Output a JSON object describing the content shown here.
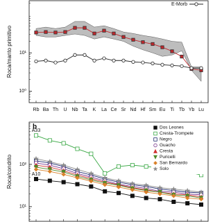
{
  "chart_data": [
    {
      "type": "line",
      "ylabel": "Roca/manto primitivo",
      "log_y": true,
      "legend": "upper right",
      "categories": [
        "Rb",
        "Ba",
        "Th",
        "U",
        "Nb",
        "Ta",
        "K",
        "La",
        "Ce",
        "Sr",
        "Nd",
        "Hf",
        "Sm",
        "Eu",
        "Ti",
        "Tb",
        "Yb",
        "Lu"
      ],
      "ylim": [
        0.5,
        230
      ],
      "yticks": [
        {
          "value": 1,
          "label": "10⁰"
        },
        {
          "value": 10,
          "label": "10¹"
        }
      ],
      "band": {
        "color": "#bdbdbd",
        "upper": [
          43,
          47,
          43,
          47,
          66,
          66,
          47,
          51,
          43,
          35,
          32,
          28.5,
          26,
          23,
          20,
          19,
          4.3,
          4.3
        ],
        "lower": [
          28.5,
          26,
          26,
          28.5,
          31,
          28.5,
          23,
          26,
          23,
          20,
          15,
          12,
          10,
          8.1,
          8.8,
          11.3,
          3.5,
          1.8
        ]
      },
      "series": [
        {
          "color": "#c0282d",
          "marker": "square",
          "values": [
            34,
            35,
            34,
            35,
            45,
            45,
            32,
            38,
            32,
            26,
            22,
            19,
            17,
            14,
            11,
            8,
            3.8,
            3.5
          ]
        },
        {
          "name": "E-Morb",
          "color": "#222222",
          "marker": "circle-open",
          "values": [
            6,
            6.3,
            5.6,
            6.3,
            8.8,
            8.8,
            6.3,
            7.2,
            6.3,
            6.3,
            5.8,
            5.6,
            5.3,
            4.9,
            4.7,
            4.5,
            4,
            4
          ]
        }
      ]
    },
    {
      "type": "line",
      "panel_label": "b",
      "ylabel": "Roca/condrito",
      "log_y": true,
      "legend": "upper right",
      "categories": [
        null,
        null,
        null,
        null,
        null,
        null,
        null,
        null,
        null,
        null,
        null,
        null,
        null
      ],
      "ylim": [
        4.5,
        1000
      ],
      "yticks": [
        {
          "value": 10,
          "label": "10¹"
        },
        {
          "value": 100,
          "label": "10²"
        }
      ],
      "series": [
        {
          "name": "Dos Leones",
          "color": "#111111",
          "marker": "square",
          "annotation": "A10",
          "values": [
            45,
            41,
            38,
            34,
            30,
            23,
            21,
            18,
            16,
            15,
            13,
            12,
            11.2
          ]
        },
        {
          "name": "Cresta-Trompete",
          "color": "#3aa845",
          "marker": "square-open",
          "annotation": "A33",
          "values": [
            482,
            369,
            316,
            233,
            178,
            61,
            89,
            96,
            89,
            83,
            74,
            66,
            56
          ]
        },
        {
          "name": "Negro",
          "color": "#1f2a6e",
          "marker": "square-open",
          "values": [
            121,
            108,
            89,
            68,
            56,
            45,
            38,
            33,
            30,
            26,
            24,
            22,
            21
          ]
        },
        {
          "name": "Guacho",
          "color": "#7a3a8f",
          "marker": "circle-open",
          "values": [
            108,
            96,
            79,
            61,
            50,
            41,
            34,
            30,
            27,
            23,
            22,
            20,
            19
          ]
        },
        {
          "name": "Cresta",
          "color": "#d03030",
          "marker": "triangle",
          "values": [
            96,
            86,
            71,
            56,
            46,
            38,
            33,
            28,
            25,
            22,
            20,
            19,
            17
          ]
        },
        {
          "name": "Puricelli",
          "color": "#4f8a2a",
          "marker": "triangle-down",
          "values": [
            86,
            76,
            66,
            52,
            43,
            36,
            32,
            27,
            24,
            22,
            19,
            18,
            16
          ]
        },
        {
          "name": "San Bernardo",
          "color": "#d9822b",
          "marker": "diamond",
          "values": [
            76,
            68,
            58,
            48,
            40,
            33,
            29,
            25,
            22,
            20,
            18,
            16,
            15
          ]
        },
        {
          "name": "Solo",
          "color": "#8a8a8a",
          "marker": "star",
          "values": [
            136,
            116,
            96,
            76,
            61,
            48,
            41,
            35,
            32,
            28,
            26,
            24,
            22
          ]
        }
      ]
    }
  ]
}
